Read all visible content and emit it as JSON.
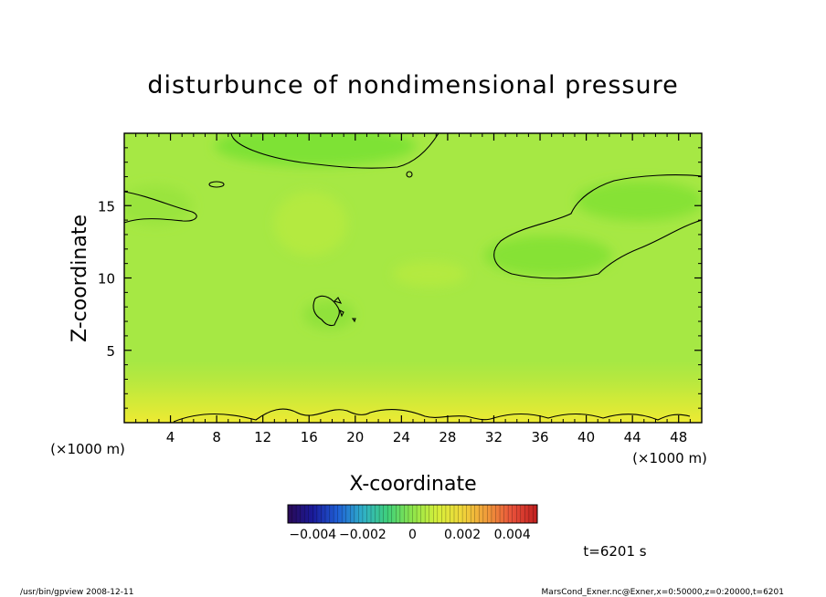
{
  "chart_data": {
    "type": "heatmap",
    "title": "disturbunce of nondimensional pressure",
    "xlabel": "X-coordinate",
    "ylabel": "Z-coordinate",
    "x_unit": "(×1000 m)",
    "y_unit": "(×1000 m)",
    "xlim": [
      0,
      50
    ],
    "ylim": [
      0,
      20
    ],
    "x_ticks": [
      4,
      8,
      12,
      16,
      20,
      24,
      28,
      32,
      36,
      40,
      44,
      48
    ],
    "y_ticks": [
      5,
      10,
      15
    ],
    "colorbar": {
      "min": -0.005,
      "max": 0.005,
      "tick_values": [
        -0.004,
        -0.002,
        0,
        0.002,
        0.004
      ],
      "tick_labels": [
        "−0.004",
        "−0.002",
        "0",
        "0.002",
        "0.004"
      ],
      "colors": [
        "#2a0a55",
        "#1a1a9a",
        "#1f5fd6",
        "#2fb0c8",
        "#3fd07a",
        "#8ee54a",
        "#d7ef3a",
        "#f0d63a",
        "#f0993a",
        "#e8503a",
        "#c01e1e"
      ]
    },
    "field_colors": {
      "background": "#a6e844",
      "green_low": "#72e031",
      "green_mid": "#8ee23a",
      "yellow_high": "#e6ea33",
      "yellow_mid": "#c8e83a"
    },
    "time_label": "t=6201 s",
    "grid": false
  },
  "footer": {
    "left": "/usr/bin/gpview   2008-12-11",
    "right": "MarsCond_Exner.nc@Exner,x=0:50000,z=0:20000,t=6201"
  }
}
